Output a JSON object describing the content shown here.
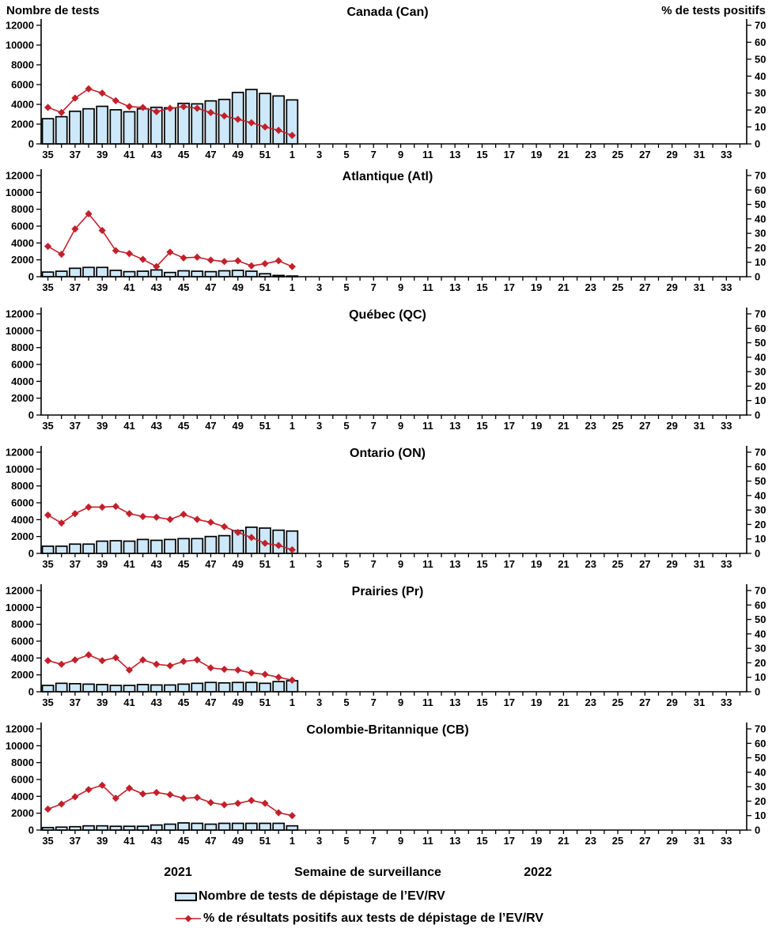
{
  "chart_data": {
    "type": "bar+line",
    "x_axis_title": "Semaine de surveillance",
    "x_years": [
      "2021",
      "2022"
    ],
    "left_axis": {
      "title": "Nombre de tests",
      "lim": [
        0,
        12000
      ],
      "ticks": [
        0,
        2000,
        4000,
        6000,
        8000,
        10000,
        12000
      ]
    },
    "right_axis": {
      "title": "% de tests positifs",
      "lim": [
        0,
        70
      ],
      "ticks": [
        0,
        10,
        20,
        30,
        40,
        50,
        60,
        70
      ]
    },
    "weeks": [
      35,
      36,
      37,
      38,
      39,
      40,
      41,
      42,
      43,
      44,
      45,
      46,
      47,
      48,
      49,
      50,
      51,
      52,
      1,
      2,
      3,
      4,
      5,
      6,
      7,
      8,
      9,
      10,
      11,
      12,
      13,
      14,
      15,
      16,
      17,
      18,
      19,
      20,
      21,
      22,
      23,
      24,
      25,
      26,
      27,
      28,
      29,
      30,
      31,
      32,
      33,
      34
    ],
    "x_tick_labels": [
      35,
      37,
      39,
      41,
      43,
      45,
      47,
      49,
      51,
      1,
      3,
      5,
      7,
      9,
      11,
      13,
      15,
      17,
      19,
      21,
      23,
      25,
      27,
      29,
      31,
      33
    ],
    "series_weeks": [
      35,
      36,
      37,
      38,
      39,
      40,
      41,
      42,
      43,
      44,
      45,
      46,
      47,
      48,
      49,
      50,
      51,
      52,
      1
    ],
    "legend": [
      "Nombre de tests de dépistage de l’EV/RV",
      "% de résultats positifs aux tests de dépistage de l’EV/RV"
    ],
    "colors": {
      "bar_fill": "#CDE8F9",
      "bar_stroke": "#000000",
      "line": "#C2202A",
      "axis": "#000000"
    },
    "panels": [
      {
        "title": "Canada (Can)",
        "tests": [
          2550,
          2750,
          3300,
          3550,
          3800,
          3450,
          3250,
          3550,
          3700,
          3650,
          4100,
          4050,
          4350,
          4500,
          5200,
          5500,
          5100,
          4850,
          4450
        ],
        "pct_positifs": [
          21.5,
          18.5,
          27,
          32.5,
          30,
          25.5,
          22,
          21.5,
          19,
          21,
          22,
          21,
          18.5,
          16.5,
          14.5,
          12.5,
          10,
          8,
          5
        ]
      },
      {
        "title": "Atlantique (Atl)",
        "tests": [
          550,
          650,
          1000,
          1100,
          1100,
          750,
          600,
          650,
          800,
          500,
          700,
          650,
          600,
          700,
          750,
          650,
          350,
          150,
          80
        ],
        "pct_positifs": [
          21,
          15.5,
          33,
          43.5,
          32,
          18,
          16,
          12,
          7,
          17,
          13,
          13.5,
          11.5,
          10.5,
          11,
          7.5,
          9,
          11,
          7
        ]
      },
      {
        "title": "Québec (QC)",
        "tests": [],
        "pct_positifs": []
      },
      {
        "title": "Ontario (ON)",
        "tests": [
          850,
          850,
          1100,
          1100,
          1450,
          1500,
          1450,
          1650,
          1550,
          1650,
          1750,
          1750,
          2000,
          2100,
          2700,
          3100,
          3000,
          2750,
          2650
        ],
        "pct_positifs": [
          26.5,
          21,
          27.5,
          32,
          32,
          32.5,
          27.5,
          25.5,
          25,
          23.5,
          27,
          23.5,
          21.5,
          18.5,
          14.5,
          11,
          7,
          5.5,
          2.5
        ]
      },
      {
        "title": "Prairies (Pr)",
        "tests": [
          750,
          1000,
          950,
          900,
          850,
          750,
          750,
          850,
          800,
          800,
          900,
          1000,
          1100,
          1050,
          1100,
          1100,
          1000,
          1200,
          1300
        ],
        "pct_positifs": [
          21.5,
          19,
          22,
          25.5,
          21.5,
          23.5,
          15,
          22,
          19,
          18,
          21,
          22,
          16.5,
          15.5,
          15,
          13,
          12,
          10,
          8
        ]
      },
      {
        "title": "Colombie-Britannique (CB)",
        "tests": [
          300,
          350,
          400,
          500,
          500,
          450,
          450,
          450,
          600,
          700,
          850,
          800,
          700,
          800,
          800,
          800,
          800,
          800,
          500
        ],
        "pct_positifs": [
          14.5,
          18,
          23,
          28,
          31,
          22,
          29,
          25,
          26,
          24.5,
          22,
          22.5,
          19,
          17.5,
          18.5,
          20.5,
          18.5,
          12,
          10
        ]
      }
    ]
  }
}
